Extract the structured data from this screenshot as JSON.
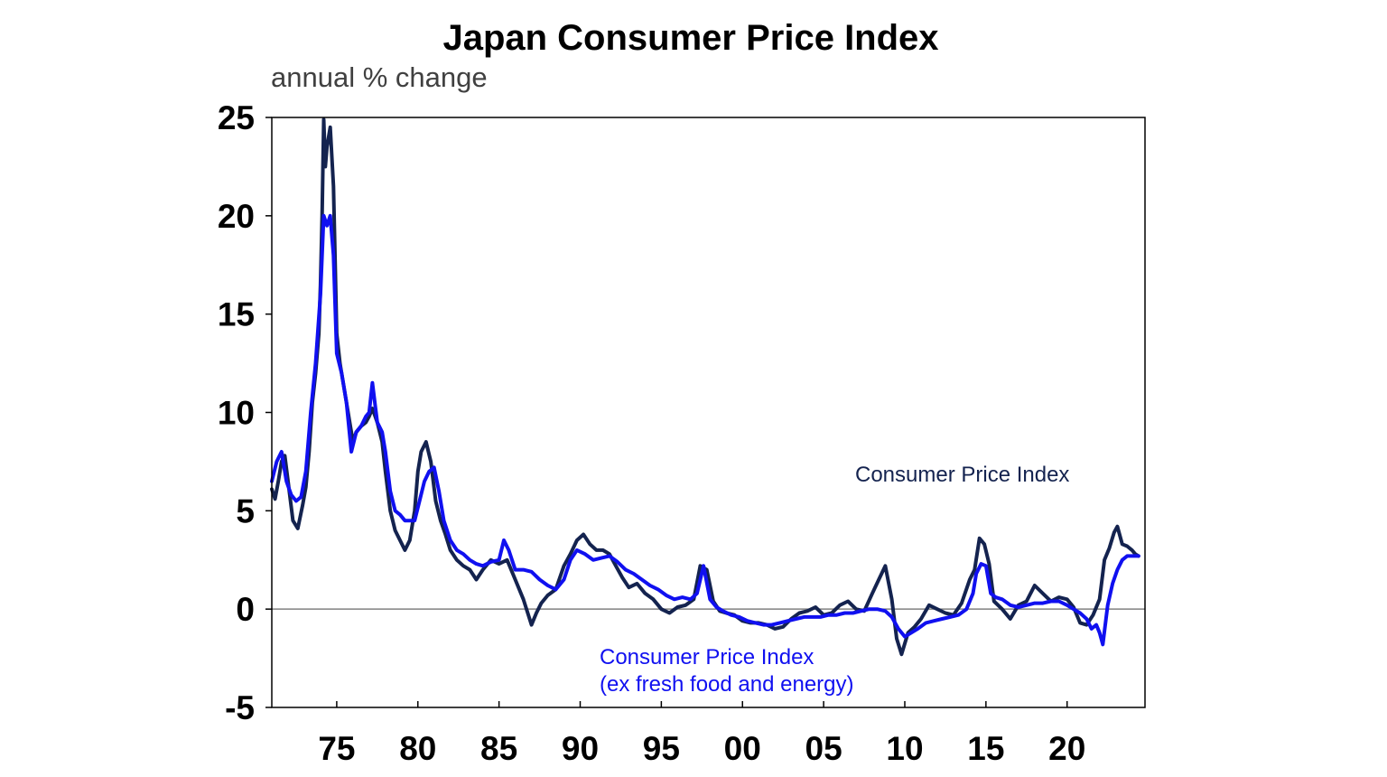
{
  "chart_data": {
    "type": "line",
    "title": "Japan Consumer Price Index",
    "subtitle": "annual % change",
    "xlabel": "",
    "ylabel": "annual % change",
    "xlim": [
      1971.0,
      2024.8
    ],
    "ylim": [
      -5,
      25
    ],
    "yticks": [
      25,
      20,
      15,
      10,
      5,
      0,
      -5
    ],
    "xticks": [
      {
        "value": 1975,
        "label": "75"
      },
      {
        "value": 1980,
        "label": "80"
      },
      {
        "value": 1985,
        "label": "85"
      },
      {
        "value": 1990,
        "label": "90"
      },
      {
        "value": 1995,
        "label": "95"
      },
      {
        "value": 2000,
        "label": "00"
      },
      {
        "value": 2005,
        "label": "05"
      },
      {
        "value": 2010,
        "label": "10"
      },
      {
        "value": 2015,
        "label": "15"
      },
      {
        "value": 2020,
        "label": "20"
      }
    ],
    "zero_line": true,
    "grid": false,
    "series": [
      {
        "name": "Consumer Price Index",
        "color": "#14234f",
        "label_lines": [
          "Consumer Price Index"
        ],
        "x": [
          1971.0,
          1971.2,
          1971.4,
          1971.6,
          1971.8,
          1972.0,
          1972.3,
          1972.6,
          1972.9,
          1973.1,
          1973.3,
          1973.5,
          1973.7,
          1973.9,
          1974.0,
          1974.1,
          1974.2,
          1974.3,
          1974.4,
          1974.6,
          1974.8,
          1975.0,
          1975.2,
          1975.5,
          1975.8,
          1976.0,
          1976.2,
          1976.5,
          1976.8,
          1977.0,
          1977.2,
          1977.5,
          1977.8,
          1978.0,
          1978.3,
          1978.6,
          1978.9,
          1979.2,
          1979.5,
          1979.8,
          1980.0,
          1980.2,
          1980.5,
          1980.8,
          1981.1,
          1981.4,
          1981.7,
          1982.0,
          1982.4,
          1982.8,
          1983.2,
          1983.6,
          1984.0,
          1984.5,
          1985.0,
          1985.5,
          1986.0,
          1986.5,
          1987.0,
          1987.3,
          1987.6,
          1988.0,
          1988.5,
          1989.0,
          1989.4,
          1989.8,
          1990.2,
          1990.6,
          1991.0,
          1991.4,
          1991.8,
          1992.2,
          1992.6,
          1993.0,
          1993.5,
          1994.0,
          1994.5,
          1995.0,
          1995.5,
          1996.0,
          1996.5,
          1997.0,
          1997.4,
          1997.8,
          1998.2,
          1998.6,
          1999.0,
          1999.5,
          2000.0,
          2000.5,
          2001.0,
          2001.5,
          2002.0,
          2002.5,
          2003.0,
          2003.5,
          2004.0,
          2004.5,
          2005.0,
          2005.5,
          2006.0,
          2006.5,
          2007.0,
          2007.5,
          2008.0,
          2008.4,
          2008.8,
          2009.2,
          2009.5,
          2009.8,
          2010.2,
          2010.6,
          2011.0,
          2011.5,
          2012.0,
          2012.5,
          2013.0,
          2013.5,
          2014.0,
          2014.3,
          2014.6,
          2014.9,
          2015.2,
          2015.5,
          2016.0,
          2016.5,
          2017.0,
          2017.5,
          2018.0,
          2018.5,
          2019.0,
          2019.5,
          2020.0,
          2020.4,
          2020.8,
          2021.2,
          2021.6,
          2022.0,
          2022.3,
          2022.6,
          2022.9,
          2023.1,
          2023.4,
          2023.7,
          2024.0,
          2024.2,
          2024.4
        ],
        "y": [
          6.1,
          5.6,
          6.5,
          7.5,
          7.8,
          6.5,
          4.5,
          4.1,
          5.3,
          6.2,
          8.0,
          10.5,
          12.0,
          14.0,
          16.5,
          20.0,
          24.9,
          22.5,
          23.5,
          24.5,
          21.5,
          14.0,
          12.5,
          11.0,
          9.5,
          8.5,
          9.0,
          9.3,
          9.5,
          9.8,
          10.2,
          9.5,
          8.5,
          7.0,
          5.0,
          4.0,
          3.5,
          3.0,
          3.5,
          5.0,
          7.0,
          8.0,
          8.5,
          7.5,
          5.5,
          4.5,
          3.8,
          3.0,
          2.5,
          2.2,
          2.0,
          1.5,
          2.0,
          2.5,
          2.3,
          2.5,
          1.5,
          0.5,
          -0.8,
          -0.2,
          0.3,
          0.7,
          1.0,
          2.2,
          2.8,
          3.5,
          3.8,
          3.3,
          3.0,
          3.0,
          2.8,
          2.2,
          1.6,
          1.1,
          1.3,
          0.8,
          0.5,
          0.0,
          -0.2,
          0.1,
          0.2,
          0.5,
          2.2,
          2.0,
          0.4,
          -0.1,
          -0.2,
          -0.3,
          -0.6,
          -0.7,
          -0.7,
          -0.8,
          -1.0,
          -0.9,
          -0.5,
          -0.2,
          -0.1,
          0.1,
          -0.3,
          -0.2,
          0.2,
          0.4,
          0.0,
          -0.1,
          0.8,
          1.5,
          2.2,
          0.5,
          -1.5,
          -2.3,
          -1.2,
          -0.9,
          -0.5,
          0.2,
          0.0,
          -0.2,
          -0.3,
          0.3,
          1.5,
          2.0,
          3.6,
          3.3,
          2.3,
          0.4,
          0.0,
          -0.5,
          0.2,
          0.4,
          1.2,
          0.8,
          0.4,
          0.6,
          0.5,
          0.1,
          -0.7,
          -0.8,
          -0.3,
          0.5,
          2.5,
          3.1,
          3.9,
          4.2,
          3.3,
          3.2,
          3.0,
          2.8,
          2.7
        ]
      },
      {
        "name": "Consumer Price Index (ex fresh food and energy)",
        "color": "#1010f0",
        "label_lines": [
          "Consumer Price Index",
          "(ex fresh food and energy)"
        ],
        "x": [
          1971.0,
          1971.3,
          1971.6,
          1971.9,
          1972.2,
          1972.5,
          1972.8,
          1973.1,
          1973.4,
          1973.7,
          1974.0,
          1974.2,
          1974.4,
          1974.6,
          1974.8,
          1975.0,
          1975.3,
          1975.6,
          1975.9,
          1976.2,
          1976.5,
          1976.8,
          1977.0,
          1977.2,
          1977.5,
          1977.8,
          1978.0,
          1978.3,
          1978.6,
          1978.9,
          1979.2,
          1979.5,
          1979.8,
          1980.1,
          1980.4,
          1980.7,
          1981.0,
          1981.3,
          1981.6,
          1982.0,
          1982.4,
          1982.8,
          1983.2,
          1983.6,
          1984.0,
          1984.5,
          1985.0,
          1985.3,
          1985.6,
          1986.0,
          1986.5,
          1987.0,
          1987.5,
          1988.0,
          1988.5,
          1989.0,
          1989.4,
          1989.8,
          1990.3,
          1990.8,
          1991.3,
          1991.8,
          1992.3,
          1992.8,
          1993.3,
          1993.8,
          1994.3,
          1994.8,
          1995.3,
          1995.8,
          1996.3,
          1996.8,
          1997.2,
          1997.6,
          1998.0,
          1998.4,
          1998.8,
          1999.3,
          1999.8,
          2000.3,
          2000.8,
          2001.3,
          2001.8,
          2002.3,
          2002.8,
          2003.3,
          2003.8,
          2004.3,
          2004.8,
          2005.3,
          2005.8,
          2006.3,
          2006.8,
          2007.3,
          2007.8,
          2008.3,
          2008.8,
          2009.2,
          2009.6,
          2010.0,
          2010.4,
          2010.8,
          2011.3,
          2011.8,
          2012.3,
          2012.8,
          2013.3,
          2013.8,
          2014.2,
          2014.4,
          2014.7,
          2015.0,
          2015.3,
          2015.6,
          2016.0,
          2016.5,
          2017.0,
          2017.5,
          2018.0,
          2018.5,
          2019.0,
          2019.5,
          2020.0,
          2020.4,
          2020.8,
          2021.2,
          2021.5,
          2021.8,
          2022.0,
          2022.2,
          2022.5,
          2022.8,
          2023.1,
          2023.4,
          2023.7,
          2024.0,
          2024.4
        ],
        "y": [
          6.5,
          7.5,
          8.0,
          6.5,
          5.8,
          5.5,
          5.7,
          7.0,
          10.0,
          12.5,
          16.0,
          20.0,
          19.5,
          20.0,
          18.0,
          13.0,
          12.0,
          10.5,
          8.0,
          9.0,
          9.3,
          9.8,
          10.0,
          11.5,
          9.5,
          9.0,
          8.0,
          6.0,
          5.0,
          4.8,
          4.5,
          4.5,
          4.5,
          5.5,
          6.5,
          7.0,
          7.2,
          6.0,
          4.5,
          3.5,
          3.0,
          2.8,
          2.5,
          2.3,
          2.2,
          2.4,
          2.5,
          3.5,
          3.0,
          2.0,
          2.0,
          1.9,
          1.5,
          1.2,
          1.0,
          1.5,
          2.5,
          3.0,
          2.8,
          2.5,
          2.6,
          2.7,
          2.4,
          2.0,
          1.8,
          1.5,
          1.2,
          1.0,
          0.7,
          0.5,
          0.6,
          0.5,
          0.8,
          2.2,
          0.5,
          0.1,
          -0.1,
          -0.3,
          -0.4,
          -0.6,
          -0.7,
          -0.8,
          -0.8,
          -0.7,
          -0.6,
          -0.5,
          -0.4,
          -0.4,
          -0.4,
          -0.3,
          -0.3,
          -0.2,
          -0.2,
          -0.1,
          0.0,
          0.0,
          -0.1,
          -0.4,
          -1.0,
          -1.4,
          -1.2,
          -1.0,
          -0.7,
          -0.6,
          -0.5,
          -0.4,
          -0.3,
          0.0,
          0.8,
          1.8,
          2.3,
          2.2,
          0.8,
          0.6,
          0.5,
          0.2,
          0.1,
          0.2,
          0.3,
          0.3,
          0.4,
          0.4,
          0.2,
          0.0,
          -0.2,
          -0.5,
          -1.0,
          -0.8,
          -1.2,
          -1.8,
          0.2,
          1.3,
          2.0,
          2.5,
          2.7,
          2.7,
          2.7
        ]
      }
    ]
  }
}
